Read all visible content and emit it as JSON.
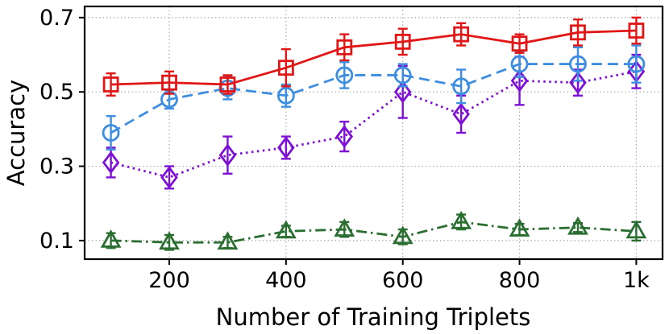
{
  "chart_data": {
    "type": "line",
    "title": "",
    "xlabel": "Number of Training Triplets",
    "ylabel": "Accuracy",
    "xlim": [
      55,
      1045
    ],
    "ylim": [
      0.05,
      0.73
    ],
    "grid": true,
    "legend": "none",
    "x": [
      100,
      200,
      300,
      400,
      500,
      600,
      700,
      800,
      900,
      1000
    ],
    "xticks": {
      "values": [
        200,
        400,
        600,
        800,
        1000
      ],
      "labels": [
        "200",
        "400",
        "600",
        "800",
        "1k"
      ]
    },
    "yticks": {
      "values": [
        0.1,
        0.3,
        0.5,
        0.7
      ],
      "labels": [
        "0.1",
        "0.3",
        "0.5",
        "0.7"
      ]
    },
    "series": [
      {
        "name": "green-triangles",
        "marker": "triangle",
        "linestyle": "dashdot",
        "color": "#2a6e31",
        "values": [
          0.1,
          0.095,
          0.095,
          0.125,
          0.13,
          0.11,
          0.15,
          0.13,
          0.135,
          0.125
        ],
        "errors": [
          0.02,
          0.02,
          0.015,
          0.015,
          0.02,
          0.02,
          0.02,
          0.015,
          0.012,
          0.025
        ]
      },
      {
        "name": "purple-diamonds",
        "marker": "diamond",
        "linestyle": "dotted",
        "color": "#7d10d4",
        "values": [
          0.31,
          0.27,
          0.33,
          0.35,
          0.38,
          0.5,
          0.44,
          0.53,
          0.525,
          0.555
        ],
        "errors": [
          0.04,
          0.03,
          0.05,
          0.03,
          0.04,
          0.07,
          0.05,
          0.065,
          0.035,
          0.045
        ]
      },
      {
        "name": "blue-circles",
        "marker": "circle",
        "linestyle": "dashed",
        "color": "#3d8de0",
        "values": [
          0.39,
          0.48,
          0.51,
          0.49,
          0.545,
          0.545,
          0.515,
          0.575,
          0.575,
          0.575
        ],
        "errors": [
          0.045,
          0.025,
          0.03,
          0.03,
          0.035,
          0.03,
          0.045,
          0.035,
          0.045,
          0.05
        ]
      },
      {
        "name": "red-squares",
        "marker": "square",
        "linestyle": "solid",
        "color": "#e11717",
        "values": [
          0.52,
          0.525,
          0.52,
          0.565,
          0.62,
          0.635,
          0.655,
          0.63,
          0.66,
          0.665
        ],
        "errors": [
          0.03,
          0.03,
          0.025,
          0.05,
          0.035,
          0.035,
          0.03,
          0.025,
          0.035,
          0.035
        ]
      }
    ],
    "style": {
      "grid_color": "#aaaaaa",
      "axis_color": "#000000",
      "background": "#ffffff"
    }
  }
}
